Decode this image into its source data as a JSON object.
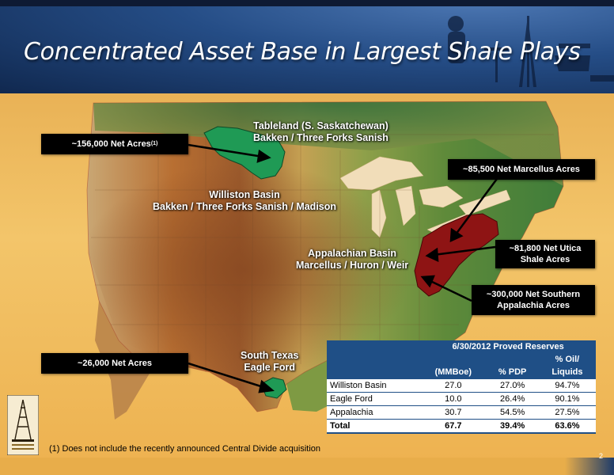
{
  "slide": {
    "title": "Concentrated Asset Base in Largest Shale Plays",
    "page_number": "2",
    "footnote": "(1) Does not include the recently announced Central Divide acquisition"
  },
  "map_labels": {
    "tableland_line1": "Tableland (S. Saskatchewan)",
    "tableland_line2": "Bakken / Three Forks Sanish",
    "williston_line1": "Williston Basin",
    "williston_line2": "Bakken / Three Forks Sanish / Madison",
    "appalachian_line1": "Appalachian Basin",
    "appalachian_line2": "Marcellus / Huron / Weir",
    "south_texas_line1": "South Texas",
    "south_texas_line2": "Eagle Ford"
  },
  "callouts": {
    "williston_acres": "~156,000 Net Acres",
    "williston_sup": "(1)",
    "marcellus_acres": "~85,500 Net Marcellus Acres",
    "utica_line1": "~81,800  Net Utica",
    "utica_line2": "Shale Acres",
    "southern_app_line1": "~300,000 Net Southern",
    "southern_app_line2": "Appalachia Acres",
    "eagle_ford_acres": "~26,000 Net Acres"
  },
  "reserves_table": {
    "header_title": "6/30/2012 Proved Reserves",
    "col_pct_oil_line1": "% Oil/",
    "col_mmboe": "(MMBoe)",
    "col_pct_pdp": "% PDP",
    "col_pct_oil_line2": "Liquids",
    "rows": [
      {
        "name": "Williston Basin",
        "mmboe": "27.0",
        "pdp": "27.0%",
        "oil": "94.7%"
      },
      {
        "name": "Eagle Ford",
        "mmboe": "10.0",
        "pdp": "26.4%",
        "oil": "90.1%"
      },
      {
        "name": "Appalachia",
        "mmboe": "30.7",
        "pdp": "54.5%",
        "oil": "27.5%"
      }
    ],
    "total": {
      "name": "Total",
      "mmboe": "67.7",
      "pdp": "39.4%",
      "oil": "63.6%"
    }
  },
  "colors": {
    "banner": "#254d86",
    "williston_region": "#1f9a55",
    "appalachia_region": "#8e1414",
    "table_header": "#1f4f86"
  }
}
